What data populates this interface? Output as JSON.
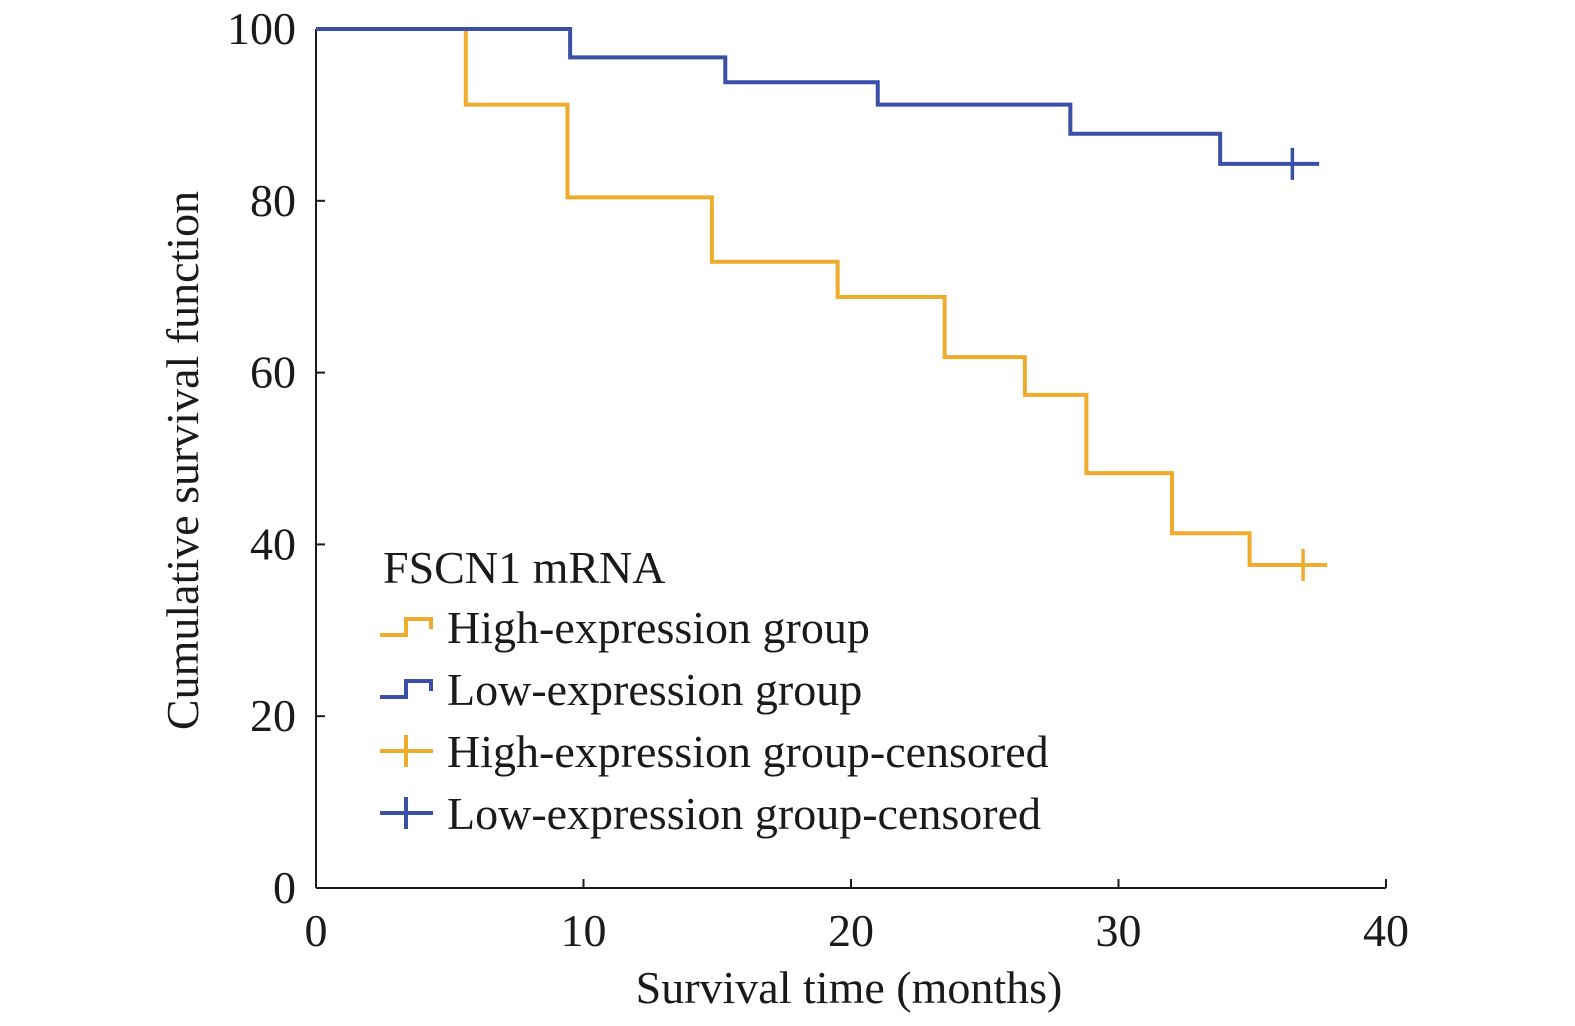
{
  "chart_data": {
    "type": "line",
    "subtype": "kaplan-meier-step",
    "title": "",
    "xlabel": "Survival time (months)",
    "ylabel": "Cumulative survival function",
    "xlim": [
      0,
      40
    ],
    "ylim": [
      0,
      100
    ],
    "xticks": [
      0,
      10,
      20,
      30,
      40
    ],
    "yticks": [
      0,
      20,
      40,
      60,
      80,
      100
    ],
    "grid": false,
    "legend": {
      "title": "FSCN1 mRNA",
      "placement": "lower-left",
      "entries": [
        {
          "label": "High-expression group",
          "series": "high",
          "marker": "step"
        },
        {
          "label": "Low-expression group",
          "series": "low",
          "marker": "step"
        },
        {
          "label": "High-expression group-censored",
          "series": "high",
          "marker": "plus"
        },
        {
          "label": "Low-expression group-censored",
          "series": "low",
          "marker": "plus"
        }
      ]
    },
    "series": [
      {
        "id": "high",
        "name": "High-expression group",
        "color": "#EFAC2C",
        "x": [
          0,
          5.6,
          9.4,
          14.8,
          19.5,
          23.5,
          26.5,
          28.8,
          32.0,
          34.9,
          37.8
        ],
        "y": [
          100,
          91.2,
          80.4,
          72.9,
          68.8,
          61.8,
          57.4,
          48.3,
          41.3,
          37.6,
          37.6
        ],
        "censored": [
          {
            "x": 36.9,
            "y": 37.6
          }
        ]
      },
      {
        "id": "low",
        "name": "Low-expression group",
        "color": "#3A4FA8",
        "x": [
          0,
          9.5,
          15.3,
          21.0,
          28.2,
          33.8,
          37.5
        ],
        "y": [
          100,
          96.7,
          93.8,
          91.2,
          87.8,
          84.3,
          84.3
        ],
        "censored": [
          {
            "x": 36.5,
            "y": 84.3
          }
        ]
      }
    ]
  }
}
